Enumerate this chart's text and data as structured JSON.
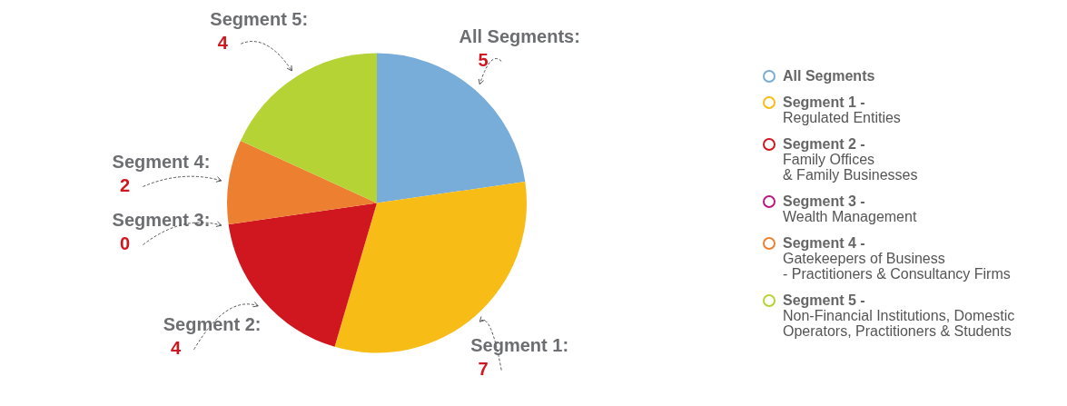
{
  "chart_data": {
    "type": "pie",
    "categories": [
      "All Segments",
      "Segment 1 -\nRegulated Entities",
      "Segment 2 -\nFamily Offices\n& Family Businesses",
      "Segment 3 -\nWealth Management",
      "Segment 4 -\nGatekeepers of Business\n- Practitioners & Consultancy Firms",
      "Segment 5 -\nNon-Financial Institutions, Domestic\nOperators, Practitioners & Students"
    ],
    "values": [
      5,
      7,
      4,
      0,
      2,
      4
    ],
    "colors": [
      "#78acd9",
      "#f8bc16",
      "#d0161e",
      "#c0177f",
      "#ed8030",
      "#b5d334"
    ],
    "annotations": [
      "All Segments:",
      "Segment 1:",
      "Segment 2:",
      "Segment 3:",
      "Segment 4:",
      "Segment 5:"
    ],
    "value_labels": [
      "5",
      "7",
      "4",
      "0",
      "2",
      "4"
    ],
    "legend": "right"
  }
}
